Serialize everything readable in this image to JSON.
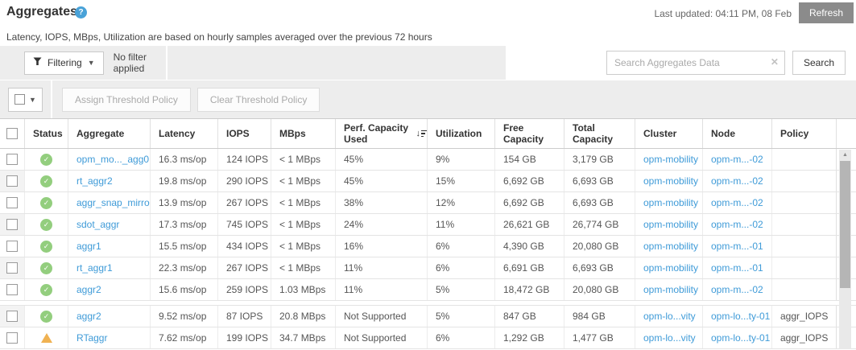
{
  "page": {
    "title": "Aggregates",
    "subtitle": "Latency, IOPS, MBps, Utilization are based on hourly samples averaged over the previous 72 hours",
    "last_updated": "Last updated: 04:11 PM, 08 Feb",
    "refresh_label": "Refresh",
    "help_icon": "?"
  },
  "toolbar": {
    "filtering_label": "Filtering",
    "filter_status": "No filter applied",
    "search_placeholder": "Search Aggregates Data",
    "search_value": "",
    "search_button_label": "Search",
    "assign_button_label": "Assign Threshold Policy",
    "clear_button_label": "Clear Threshold Policy"
  },
  "colors": {
    "status_ok": "#93ce7e",
    "status_warning": "#f0b252",
    "link": "#3f9bd8",
    "help_accent": "#49a2d8",
    "refresh_button_bg": "#8b8b8b",
    "toolbar_panel": "#ededed"
  },
  "table": {
    "columns": [
      {
        "label": "Status",
        "sort": false
      },
      {
        "label": "Aggregate",
        "sort": false
      },
      {
        "label": "Latency",
        "sort": false
      },
      {
        "label": "IOPS",
        "sort": false
      },
      {
        "label": "MBps",
        "sort": false
      },
      {
        "label": "Perf. Capacity Used",
        "sort": true
      },
      {
        "label": "Utilization",
        "sort": false
      },
      {
        "label": "Free Capacity",
        "sort": false
      },
      {
        "label": "Total Capacity",
        "sort": false
      },
      {
        "label": "Cluster",
        "sort": false
      },
      {
        "label": "Node",
        "sort": false
      },
      {
        "label": "Policy",
        "sort": false
      }
    ],
    "spacer_after_row_index": 6,
    "rows": [
      {
        "status": "ok",
        "aggregate": "opm_mo..._agg0",
        "latency": "16.3 ms/op",
        "iops": "124 IOPS",
        "mbps": "< 1 MBps",
        "perf_capacity_used": "45%",
        "utilization": "9%",
        "free_capacity": "154 GB",
        "total_capacity": "3,179 GB",
        "cluster": "opm-mobility",
        "node": "opm-m...-02",
        "policy": ""
      },
      {
        "status": "ok",
        "aggregate": "rt_aggr2",
        "latency": "19.8 ms/op",
        "iops": "290 IOPS",
        "mbps": "< 1 MBps",
        "perf_capacity_used": "45%",
        "utilization": "15%",
        "free_capacity": "6,692 GB",
        "total_capacity": "6,693 GB",
        "cluster": "opm-mobility",
        "node": "opm-m...-02",
        "policy": ""
      },
      {
        "status": "ok",
        "aggregate": "aggr_snap_mirror",
        "latency": "13.9 ms/op",
        "iops": "267 IOPS",
        "mbps": "< 1 MBps",
        "perf_capacity_used": "38%",
        "utilization": "12%",
        "free_capacity": "6,692 GB",
        "total_capacity": "6,693 GB",
        "cluster": "opm-mobility",
        "node": "opm-m...-02",
        "policy": ""
      },
      {
        "status": "ok",
        "aggregate": "sdot_aggr",
        "latency": "17.3 ms/op",
        "iops": "745 IOPS",
        "mbps": "< 1 MBps",
        "perf_capacity_used": "24%",
        "utilization": "11%",
        "free_capacity": "26,621 GB",
        "total_capacity": "26,774 GB",
        "cluster": "opm-mobility",
        "node": "opm-m...-02",
        "policy": ""
      },
      {
        "status": "ok",
        "aggregate": "aggr1",
        "latency": "15.5 ms/op",
        "iops": "434 IOPS",
        "mbps": "< 1 MBps",
        "perf_capacity_used": "16%",
        "utilization": "6%",
        "free_capacity": "4,390 GB",
        "total_capacity": "20,080 GB",
        "cluster": "opm-mobility",
        "node": "opm-m...-01",
        "policy": ""
      },
      {
        "status": "ok",
        "aggregate": "rt_aggr1",
        "latency": "22.3 ms/op",
        "iops": "267 IOPS",
        "mbps": "< 1 MBps",
        "perf_capacity_used": "11%",
        "utilization": "6%",
        "free_capacity": "6,691 GB",
        "total_capacity": "6,693 GB",
        "cluster": "opm-mobility",
        "node": "opm-m...-01",
        "policy": ""
      },
      {
        "status": "ok",
        "aggregate": "aggr2",
        "latency": "15.6 ms/op",
        "iops": "259 IOPS",
        "mbps": "1.03 MBps",
        "perf_capacity_used": "11%",
        "utilization": "5%",
        "free_capacity": "18,472 GB",
        "total_capacity": "20,080 GB",
        "cluster": "opm-mobility",
        "node": "opm-m...-02",
        "policy": ""
      },
      {
        "status": "ok",
        "aggregate": "aggr2",
        "latency": "9.52 ms/op",
        "iops": "87 IOPS",
        "mbps": "20.8 MBps",
        "perf_capacity_used": "Not Supported",
        "utilization": "5%",
        "free_capacity": "847 GB",
        "total_capacity": "984 GB",
        "cluster": "opm-lo...vity",
        "node": "opm-lo...ty-01",
        "policy": "aggr_IOPS"
      },
      {
        "status": "warning",
        "aggregate": "RTaggr",
        "latency": "7.62 ms/op",
        "iops": "199 IOPS",
        "mbps": "34.7 MBps",
        "perf_capacity_used": "Not Supported",
        "utilization": "6%",
        "free_capacity": "1,292 GB",
        "total_capacity": "1,477 GB",
        "cluster": "opm-lo...vity",
        "node": "opm-lo...ty-01",
        "policy": "aggr_IOPS"
      }
    ]
  }
}
